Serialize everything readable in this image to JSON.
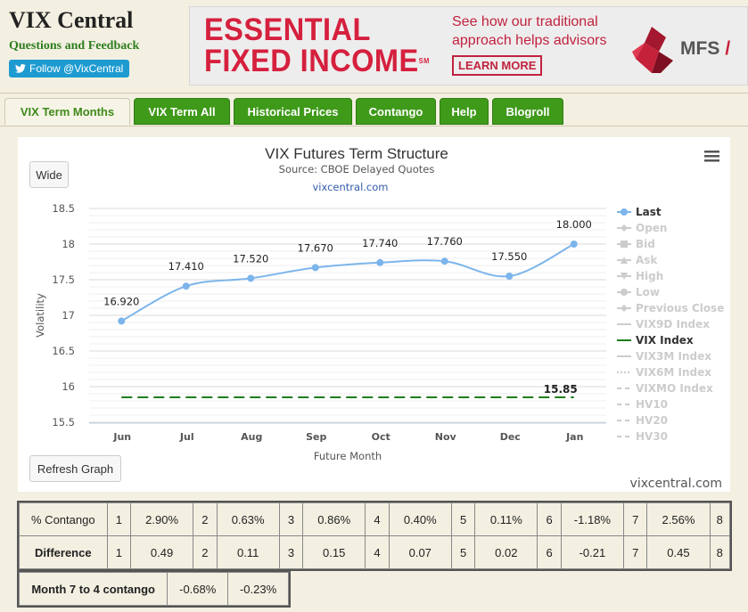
{
  "header": {
    "site_title": "VIX Central",
    "questions_link": "Questions and Feedback",
    "follow_label": "Follow @VixCentral"
  },
  "ad": {
    "headline_1": "ESSENTIAL",
    "headline_2": "FIXED INCOME",
    "trademark": "SM",
    "text_1": "See how our traditional",
    "text_2": "approach helps advisors",
    "cta": "LEARN MORE",
    "brand": "MFS",
    "brand_suffix": "/"
  },
  "tabs": [
    {
      "label": "VIX Term Months",
      "active": true
    },
    {
      "label": "VIX Term All",
      "active": false
    },
    {
      "label": "Historical Prices",
      "active": false
    },
    {
      "label": "Contango",
      "active": false
    },
    {
      "label": "Help",
      "active": false
    },
    {
      "label": "Blogroll",
      "active": false
    }
  ],
  "buttons": {
    "wide": "Wide",
    "refresh": "Refresh Graph"
  },
  "watermark": "vixcentral.com",
  "chart_data": {
    "type": "line",
    "title": "VIX Futures Term Structure",
    "subtitle": "Source: CBOE Delayed Quotes",
    "credit": "vixcentral.com",
    "xlabel": "Future Month",
    "ylabel": "Volatility",
    "categories": [
      "Jun",
      "Jul",
      "Aug",
      "Sep",
      "Oct",
      "Nov",
      "Dec",
      "Jan"
    ],
    "ylim": [
      15.5,
      18.5
    ],
    "yticks": [
      "15.5",
      "16",
      "16.5",
      "17",
      "17.5",
      "18",
      "18.5"
    ],
    "grid": true,
    "legend_position": "right",
    "series": [
      {
        "name": "Last",
        "values": [
          16.92,
          17.41,
          17.52,
          17.67,
          17.74,
          17.76,
          17.55,
          18.0
        ],
        "labels": [
          "16.920",
          "17.410",
          "17.520",
          "17.670",
          "17.740",
          "17.760",
          "17.550",
          "18.000"
        ],
        "color": "#7cb5ec"
      },
      {
        "name": "VIX Index",
        "values": [
          15.85,
          15.85,
          15.85,
          15.85,
          15.85,
          15.85,
          15.85,
          15.85
        ],
        "end_label": "15.85",
        "color": "#1e7d1e"
      }
    ],
    "legend": [
      {
        "label": "Last",
        "enabled": true,
        "symbol": "circle"
      },
      {
        "label": "Open",
        "enabled": false,
        "symbol": "diamond"
      },
      {
        "label": "Bid",
        "enabled": false,
        "symbol": "square"
      },
      {
        "label": "Ask",
        "enabled": false,
        "symbol": "triangle"
      },
      {
        "label": "High",
        "enabled": false,
        "symbol": "triangle-down"
      },
      {
        "label": "Low",
        "enabled": false,
        "symbol": "circle"
      },
      {
        "label": "Previous Close",
        "enabled": false,
        "symbol": "diamond"
      },
      {
        "label": "VIX9D Index",
        "enabled": false,
        "symbol": "line"
      },
      {
        "label": "VIX Index",
        "enabled": true,
        "symbol": "line"
      },
      {
        "label": "VIX3M Index",
        "enabled": false,
        "symbol": "line"
      },
      {
        "label": "VIX6M Index",
        "enabled": false,
        "symbol": "dotted"
      },
      {
        "label": "VIXMO Index",
        "enabled": false,
        "symbol": "dashed"
      },
      {
        "label": "HV10",
        "enabled": false,
        "symbol": "dashed"
      },
      {
        "label": "HV20",
        "enabled": false,
        "symbol": "dashed"
      },
      {
        "label": "HV30",
        "enabled": false,
        "symbol": "dashed"
      }
    ]
  },
  "contango_table": {
    "row_contango": {
      "label": "% Contango",
      "cells": [
        [
          "1",
          "2.90%"
        ],
        [
          "2",
          "0.63%"
        ],
        [
          "3",
          "0.86%"
        ],
        [
          "4",
          "0.40%"
        ],
        [
          "5",
          "0.11%"
        ],
        [
          "6",
          "-1.18%"
        ],
        [
          "7",
          "2.56%"
        ],
        [
          "8",
          ""
        ]
      ]
    },
    "row_difference": {
      "label": "Difference",
      "cells": [
        [
          "1",
          "0.49"
        ],
        [
          "2",
          "0.11"
        ],
        [
          "3",
          "0.15"
        ],
        [
          "4",
          "0.07"
        ],
        [
          "5",
          "0.02"
        ],
        [
          "6",
          "-0.21"
        ],
        [
          "7",
          "0.45"
        ],
        [
          "8",
          ""
        ]
      ]
    }
  },
  "month7to4": {
    "label": "Month 7 to 4 contango",
    "value_1": "-0.68%",
    "value_2": "-0.23%"
  },
  "colors": {
    "background": "#f3f0e2",
    "tab_green": "#3f9a1a",
    "series_last": "#7cb5ec",
    "series_vix": "#1e7d1e",
    "ad_red": "#d5203e"
  }
}
